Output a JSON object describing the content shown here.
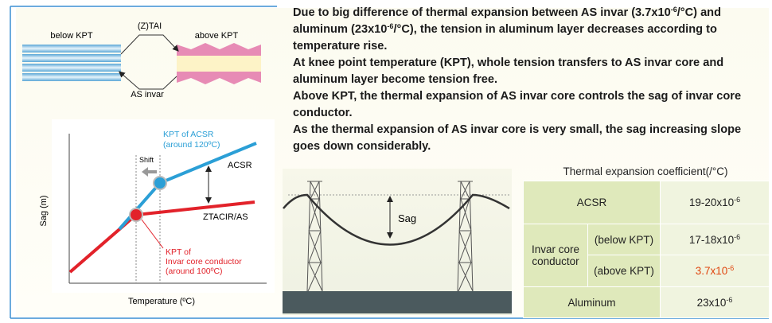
{
  "paragraphs": [
    [
      "Due to big difference of thermal expansion between AS invar (3.7x10",
      {
        "sup": "-6"
      },
      "/°C) and aluminum (23x10",
      {
        "sup": "-6"
      },
      "/°C), the tension in aluminum layer decreases according to temperature rise."
    ],
    [
      "At knee point temperature (KPT), whole tension transfers to AS invar core and aluminum layer become tension free."
    ],
    [
      "Above KPT, the thermal expansion of AS invar core controls the sag of invar core conductor."
    ],
    [
      "As the thermal expansion of AS invar core is very small, the sag increasing slope goes down considerably."
    ]
  ],
  "structure": {
    "below": "below KPT",
    "above": "above KPT",
    "outer": "(Z)TAI",
    "core": "AS invar"
  },
  "graph": {
    "y_label": "Sag (m)",
    "x_label": "Temperature (ºC)",
    "acsr_kpt": [
      "KPT of ACSR",
      "(around 120ºC)"
    ],
    "shift": "Shift",
    "acsr": "ACSR",
    "ztacir": "ZTACIR/AS",
    "invar_kpt": [
      "KPT of",
      "Invar core conductor",
      "(around 100ºC)"
    ]
  },
  "tower": {
    "sag": "Sag"
  },
  "table": {
    "title": "Thermal expansion coefficient(/°C)",
    "acsr": {
      "label": "ACSR",
      "value": {
        "base": "19-20x10",
        "sup": "-6"
      }
    },
    "invar": {
      "label": "Invar core conductor",
      "below": {
        "label": "(below KPT)",
        "value": {
          "base": "17-18x10",
          "sup": "-6"
        }
      },
      "above": {
        "label": "(above KPT)",
        "value": {
          "base": "3.7x10",
          "sup": "-6"
        }
      }
    },
    "aluminum": {
      "label": "Aluminum",
      "value": {
        "base": "23x10",
        "sup": "-6"
      }
    }
  }
}
